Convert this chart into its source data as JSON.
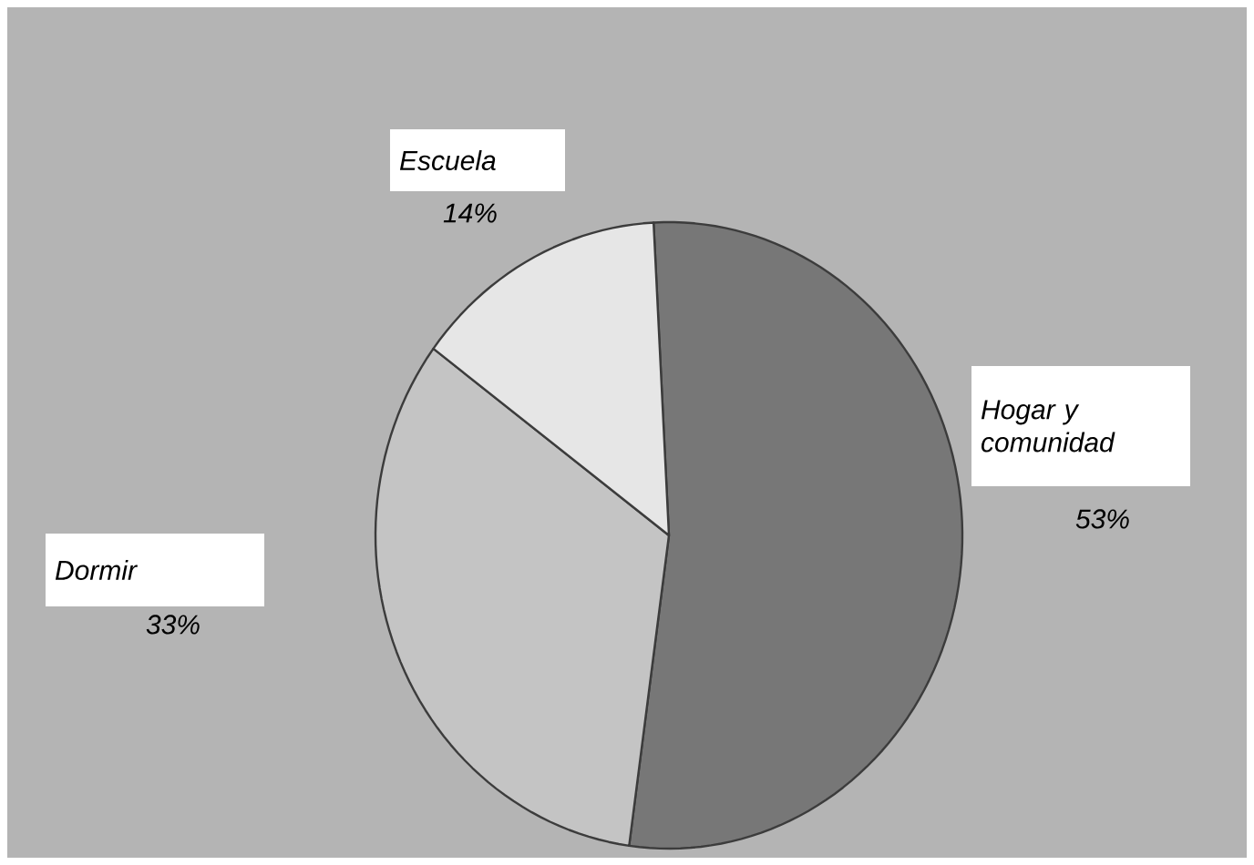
{
  "chart_data": {
    "type": "pie",
    "categories": [
      "Hogar y comunidad",
      "Dormir",
      "Escuela"
    ],
    "values": [
      53,
      33,
      14
    ],
    "colors": [
      "#777777",
      "#c4c4c4",
      "#e6e6e6"
    ],
    "value_labels": [
      "53%",
      "33%",
      "14%"
    ],
    "legend": false
  }
}
